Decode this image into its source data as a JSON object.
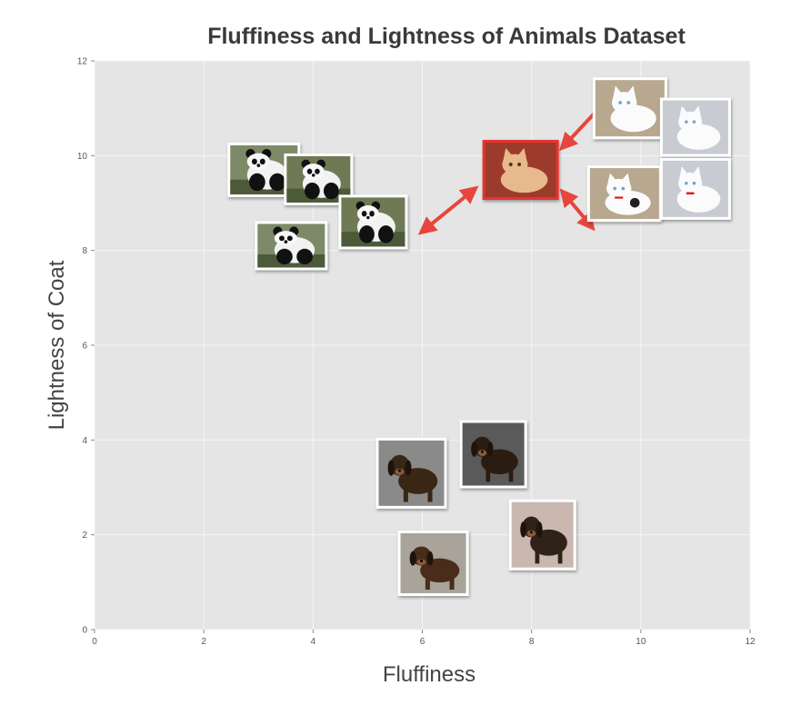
{
  "chart_data": {
    "type": "scatter",
    "title": "Fluffiness and Lightness of Animals Dataset",
    "xlabel": "Fluffiness",
    "ylabel": "Lightness of Coat",
    "xlim": [
      0,
      12
    ],
    "ylim": [
      0,
      12
    ],
    "xticks": [
      "0",
      "2",
      "4",
      "6",
      "8",
      "10",
      "12"
    ],
    "yticks": [
      "0",
      "2",
      "4",
      "6",
      "8",
      "10",
      "12"
    ],
    "grid": true,
    "series": [
      {
        "points": [
          {
            "x": 3.1,
            "y": 9.7,
            "animal": "panda"
          },
          {
            "x": 4.1,
            "y": 9.5,
            "animal": "panda"
          },
          {
            "x": 3.6,
            "y": 8.1,
            "animal": "panda"
          },
          {
            "x": 5.1,
            "y": 8.6,
            "animal": "panda"
          }
        ]
      },
      {
        "points": [
          {
            "x": 9.8,
            "y": 11.0,
            "animal": "cat"
          },
          {
            "x": 11.0,
            "y": 10.6,
            "animal": "cat"
          },
          {
            "x": 9.7,
            "y": 9.2,
            "animal": "cat"
          },
          {
            "x": 11.0,
            "y": 9.3,
            "animal": "cat"
          }
        ]
      },
      {
        "points": [
          {
            "x": 5.8,
            "y": 3.3,
            "animal": "dog"
          },
          {
            "x": 7.3,
            "y": 3.7,
            "animal": "dog"
          },
          {
            "x": 6.2,
            "y": 1.4,
            "animal": "dog"
          },
          {
            "x": 8.2,
            "y": 2.0,
            "animal": "dog"
          }
        ]
      }
    ],
    "query_point": {
      "x": 7.8,
      "y": 9.7,
      "animal": "cat",
      "highlight_color": "#e8332d"
    },
    "arrows": [
      {
        "to_x": 6.0,
        "to_y": 8.4
      },
      {
        "to_x": 9.4,
        "to_y": 11.2
      },
      {
        "to_x": 9.1,
        "to_y": 8.5
      }
    ],
    "colors": {
      "plot_background": "#e5e5e5",
      "grid": "#f5f5f5",
      "arrow": "#e8453c",
      "photo_border": "#ffffff"
    }
  }
}
